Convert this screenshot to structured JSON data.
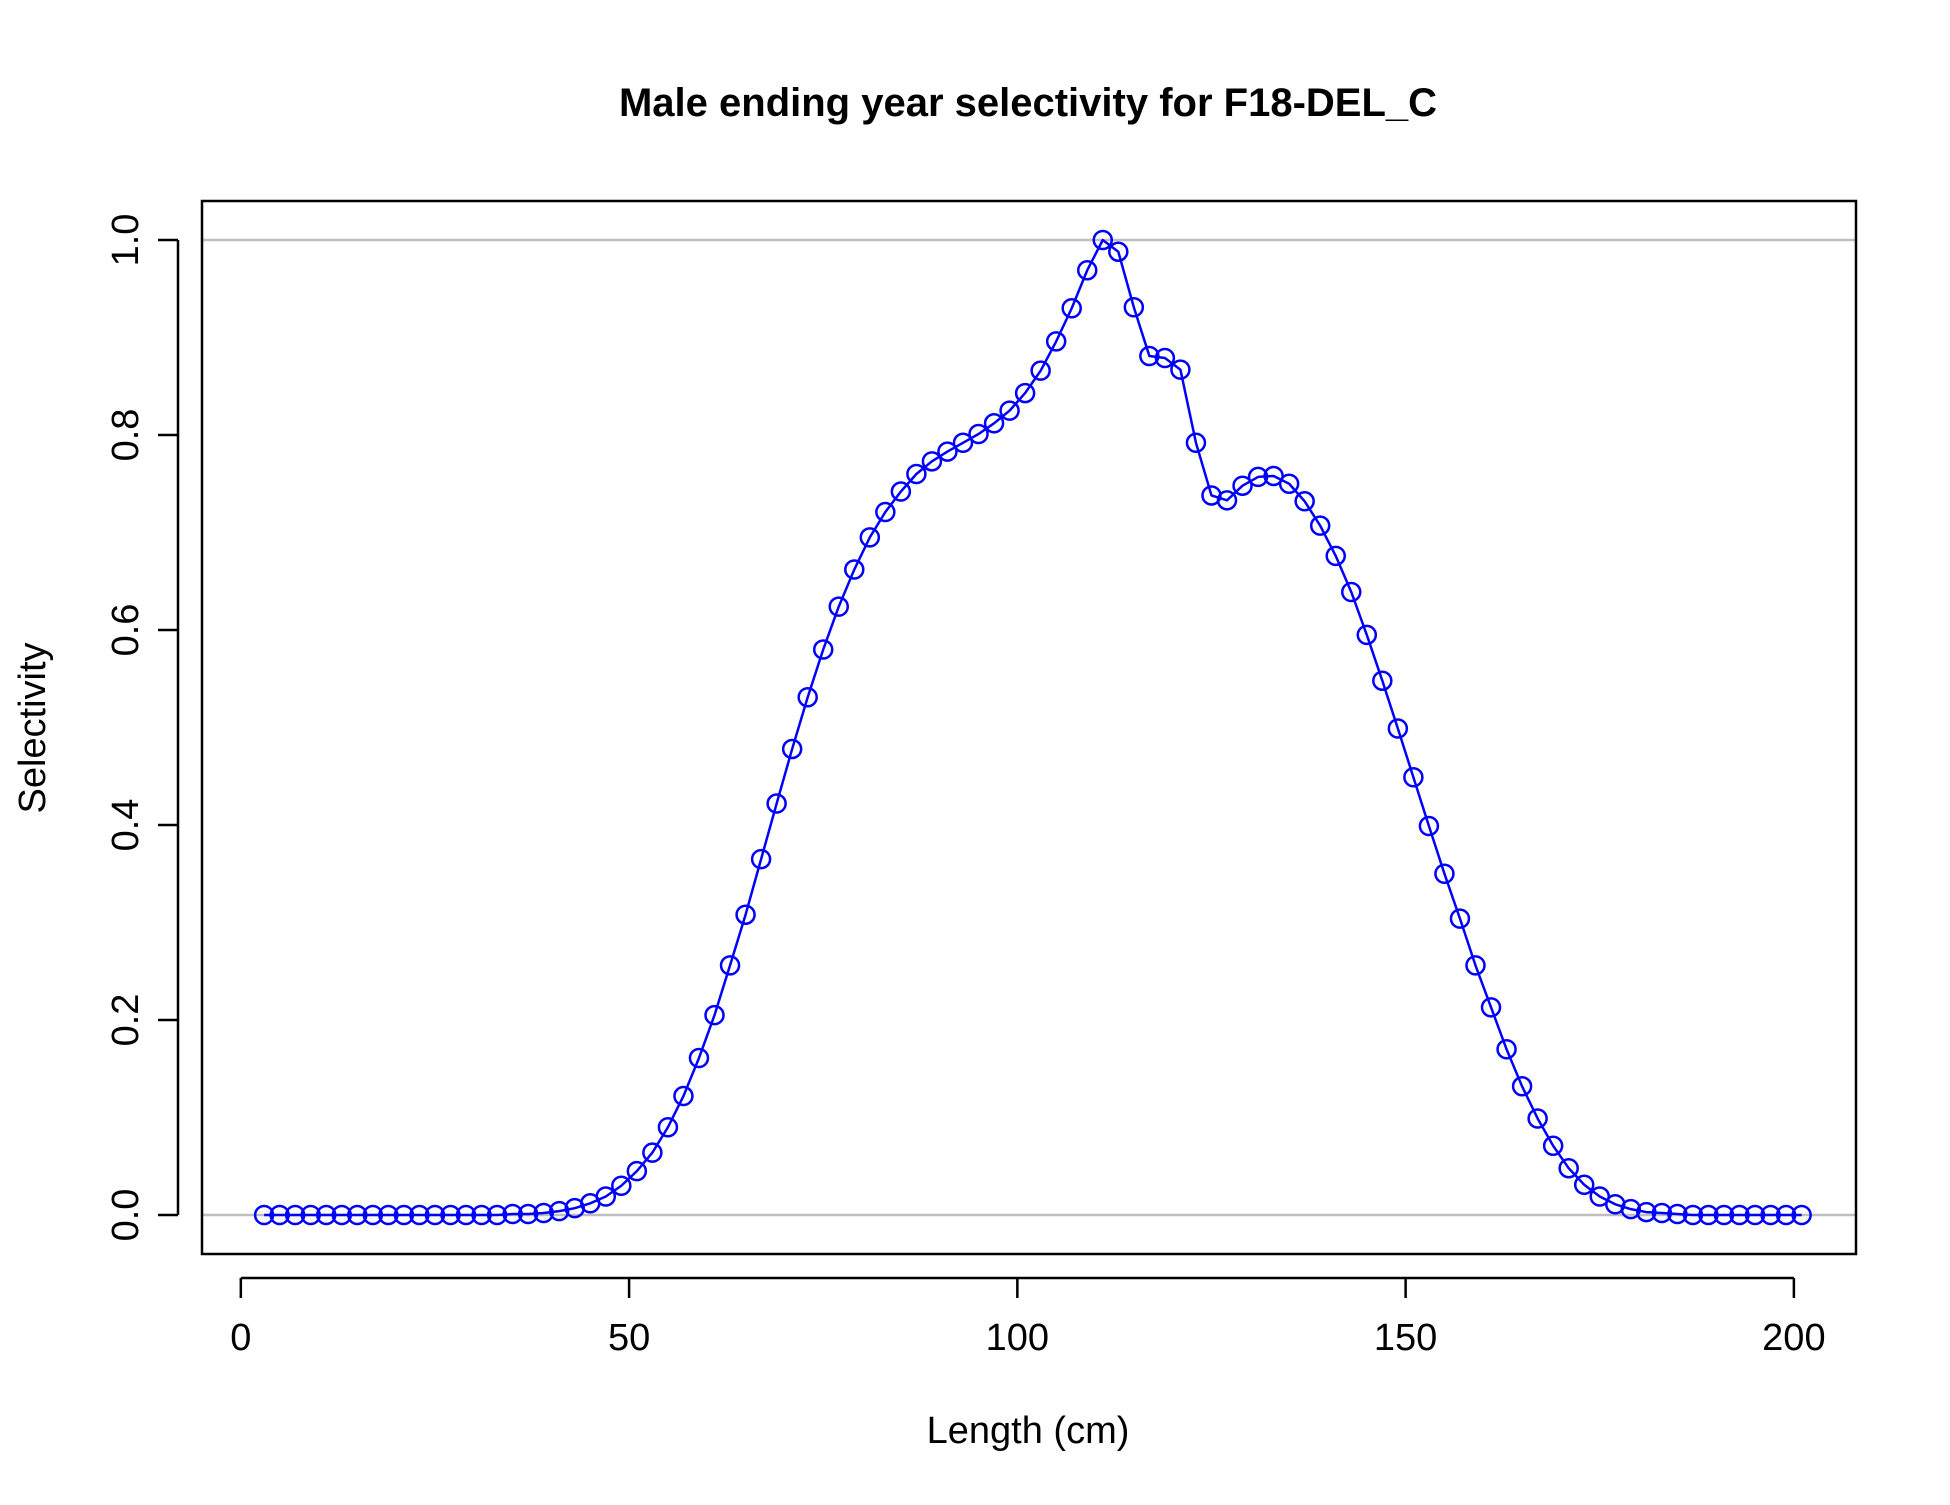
{
  "chart_data": {
    "type": "line",
    "title": "Male ending year selectivity for F18-DEL_C",
    "xlabel": "Length (cm)",
    "ylabel": "Selectivity",
    "xlim": [
      -5,
      208
    ],
    "ylim": [
      -0.04,
      1.04
    ],
    "xticks": [
      0,
      50,
      100,
      150,
      200
    ],
    "xtick_labels": [
      "0",
      "50",
      "100",
      "150",
      "200"
    ],
    "yticks": [
      0.0,
      0.2,
      0.4,
      0.6,
      0.8,
      1.0
    ],
    "ytick_labels": [
      "0.0",
      "0.2",
      "0.4",
      "0.6",
      "0.8",
      "1.0"
    ],
    "reference_lines": [
      0,
      1
    ],
    "grid": false,
    "legend": "none",
    "colors": {
      "series": "#0000ff",
      "reference": "#bebebe",
      "axes": "#000000"
    },
    "marker": "open-circle",
    "series": [
      {
        "x": [
          3,
          5,
          7,
          9,
          11,
          13,
          15,
          17,
          19,
          21,
          23,
          25,
          27,
          29,
          31,
          33,
          35,
          37,
          39,
          41,
          43,
          45,
          47,
          49,
          51,
          53,
          55,
          57,
          59,
          61,
          63,
          65,
          67,
          69,
          71,
          73,
          75,
          77,
          79,
          81,
          83,
          85,
          87,
          89,
          91,
          93,
          95,
          97,
          99,
          101,
          103,
          105,
          107,
          109,
          111,
          113,
          115,
          117,
          119,
          121,
          123,
          125,
          127,
          129,
          131,
          133,
          135,
          137,
          139,
          141,
          143,
          145,
          147,
          149,
          151,
          153,
          155,
          157,
          159,
          161,
          163,
          165,
          167,
          169,
          171,
          173,
          175,
          177,
          179,
          181,
          183,
          185,
          187,
          189,
          191,
          193,
          195,
          197,
          199,
          201
        ],
        "y": [
          0.0,
          0.0,
          0.0,
          0.0,
          0.0,
          0.0,
          0.0,
          0.0,
          0.0,
          0.0,
          0.0,
          0.0,
          0.0,
          0.0,
          0.0,
          0.0,
          0.001,
          0.001,
          0.002,
          0.004,
          0.007,
          0.012,
          0.019,
          0.03,
          0.045,
          0.064,
          0.09,
          0.122,
          0.161,
          0.205,
          0.256,
          0.308,
          0.365,
          0.422,
          0.478,
          0.531,
          0.58,
          0.624,
          0.662,
          0.695,
          0.721,
          0.742,
          0.76,
          0.773,
          0.783,
          0.792,
          0.801,
          0.812,
          0.825,
          0.843,
          0.866,
          0.896,
          0.93,
          0.969,
          1.0,
          0.988,
          0.931,
          0.881,
          0.879,
          0.867,
          0.792,
          0.738,
          0.733,
          0.748,
          0.757,
          0.758,
          0.75,
          0.732,
          0.707,
          0.676,
          0.639,
          0.595,
          0.548,
          0.499,
          0.449,
          0.399,
          0.35,
          0.304,
          0.256,
          0.213,
          0.17,
          0.132,
          0.099,
          0.071,
          0.048,
          0.031,
          0.019,
          0.011,
          0.006,
          0.003,
          0.002,
          0.001,
          0.0,
          0.0,
          0.0,
          0.0,
          0.0,
          0.0,
          0.0,
          0.0
        ]
      }
    ]
  }
}
